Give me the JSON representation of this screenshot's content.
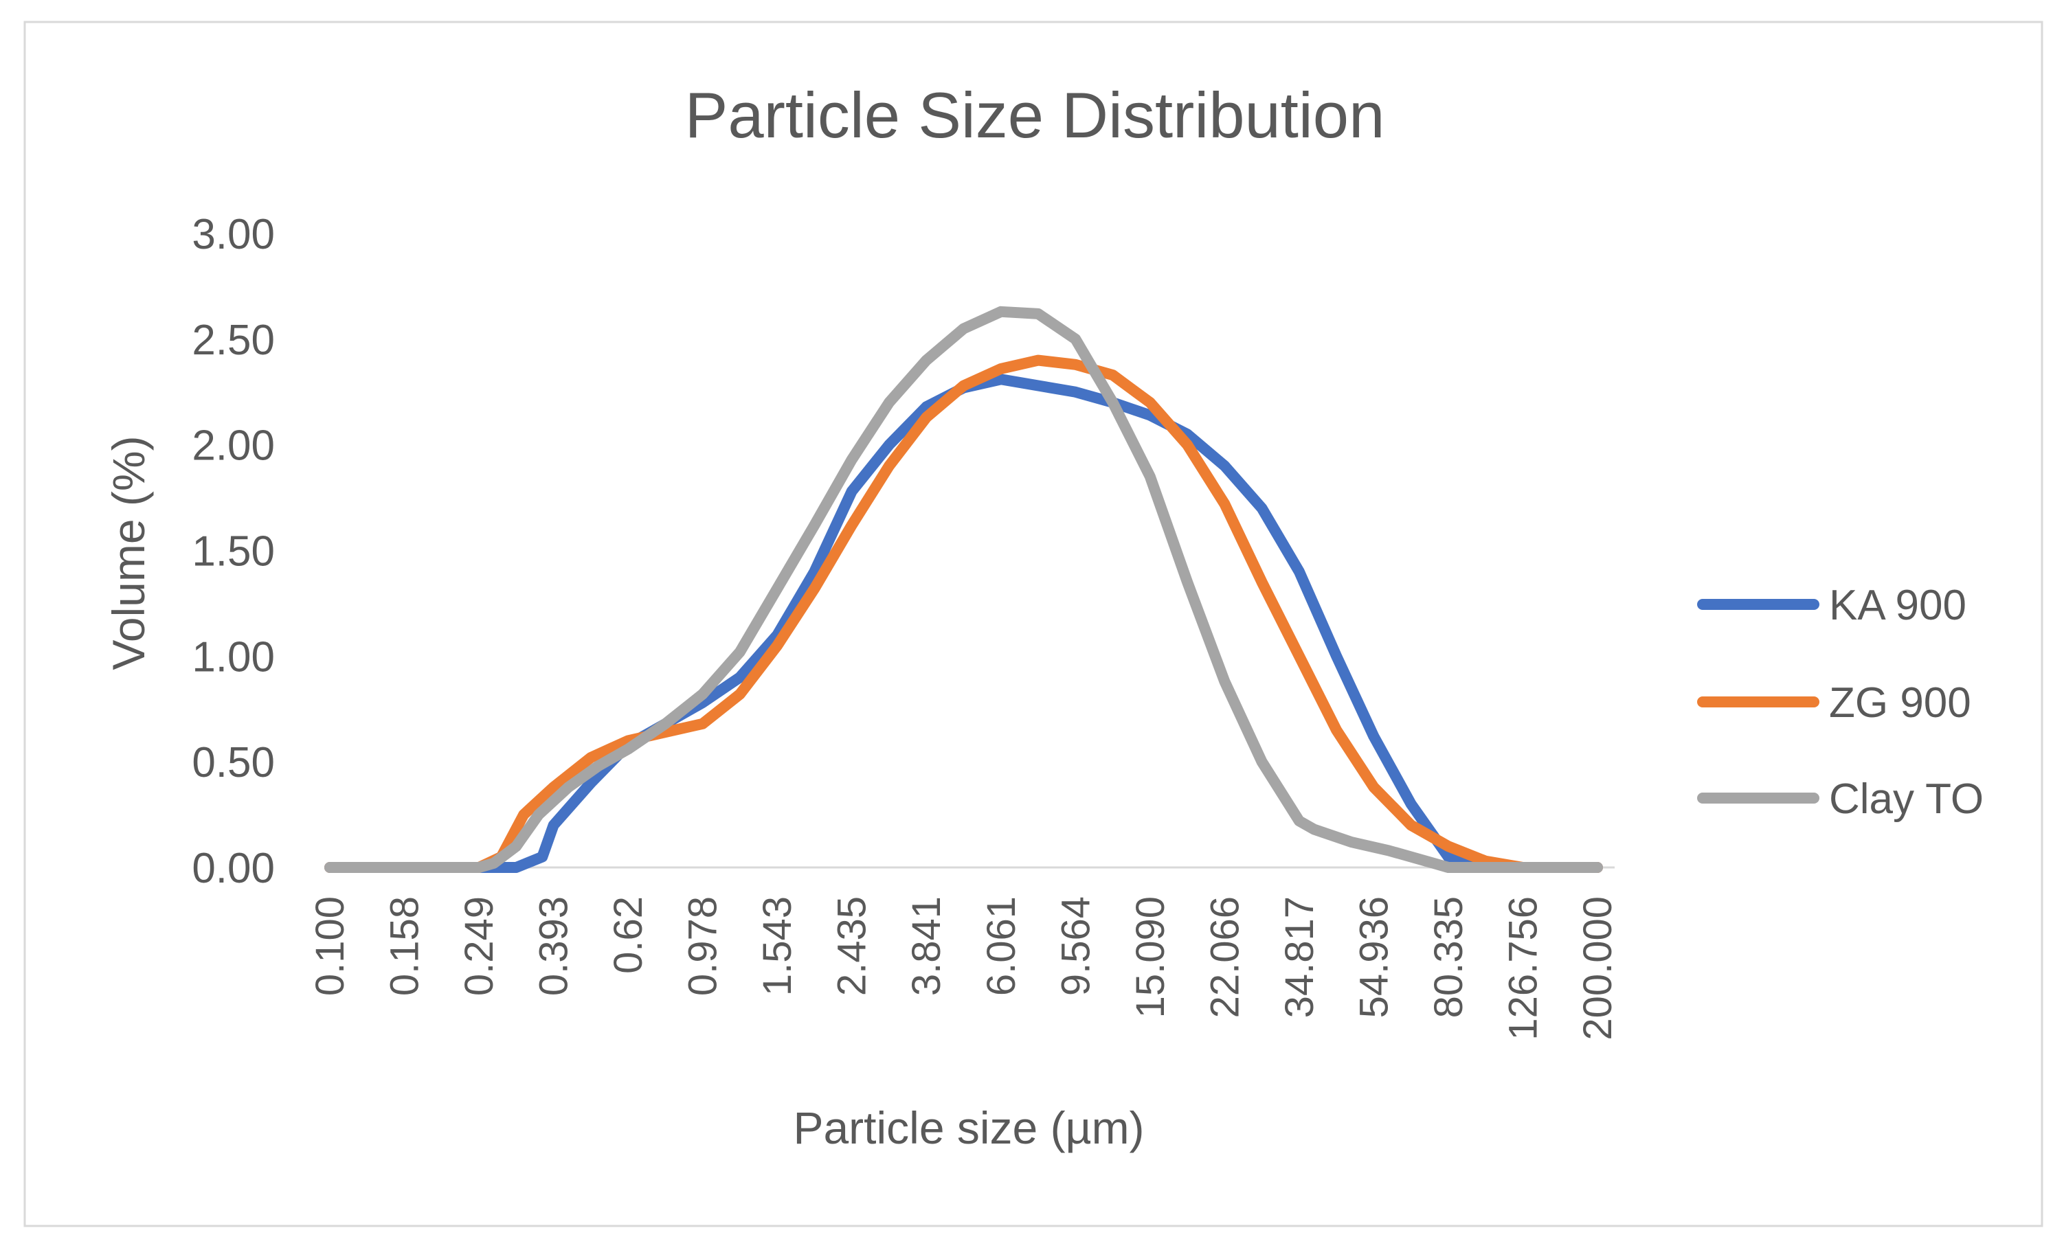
{
  "chart_data": {
    "type": "line",
    "title": "Particle Size Distribution",
    "xlabel": "Particle size (µm)",
    "ylabel": "Volume (%)",
    "x_scale": "log",
    "ylim": [
      0,
      3.0
    ],
    "y_ticks": [
      "0.00",
      "0.50",
      "1.00",
      "1.50",
      "2.00",
      "2.50",
      "3.00"
    ],
    "categories": [
      "0.100",
      "0.158",
      "0.249",
      "0.393",
      "0.62",
      "0.978",
      "1.543",
      "2.435",
      "3.841",
      "6.061",
      "9.564",
      "15.090",
      "22.066",
      "34.817",
      "54.936",
      "80.335",
      "126.756",
      "200.000"
    ],
    "grid": false,
    "legend_position": "right",
    "series": [
      {
        "name": "KA 900",
        "color": "#4472c4",
        "points": [
          [
            0,
            0
          ],
          [
            2,
            0
          ],
          [
            2.5,
            0
          ],
          [
            2.85,
            0.05
          ],
          [
            3,
            0.2
          ],
          [
            3.5,
            0.4
          ],
          [
            4,
            0.58
          ],
          [
            4.5,
            0.68
          ],
          [
            5,
            0.78
          ],
          [
            5.5,
            0.9
          ],
          [
            6,
            1.1
          ],
          [
            6.5,
            1.4
          ],
          [
            7,
            1.78
          ],
          [
            7.5,
            2.0
          ],
          [
            8,
            2.18
          ],
          [
            8.5,
            2.27
          ],
          [
            9,
            2.31
          ],
          [
            9.5,
            2.28
          ],
          [
            10,
            2.25
          ],
          [
            10.5,
            2.2
          ],
          [
            11,
            2.14
          ],
          [
            11.5,
            2.05
          ],
          [
            12,
            1.9
          ],
          [
            12.5,
            1.7
          ],
          [
            13,
            1.4
          ],
          [
            13.5,
            1.0
          ],
          [
            14,
            0.62
          ],
          [
            14.5,
            0.3
          ],
          [
            15,
            0.05
          ],
          [
            15.5,
            0
          ],
          [
            17,
            0
          ]
        ]
      },
      {
        "name": "ZG 900",
        "color": "#ed7d31",
        "points": [
          [
            0,
            0
          ],
          [
            2,
            0
          ],
          [
            2.3,
            0.05
          ],
          [
            2.6,
            0.25
          ],
          [
            3,
            0.38
          ],
          [
            3.5,
            0.52
          ],
          [
            4,
            0.6
          ],
          [
            4.5,
            0.64
          ],
          [
            5,
            0.68
          ],
          [
            5.5,
            0.82
          ],
          [
            6,
            1.05
          ],
          [
            6.5,
            1.32
          ],
          [
            7,
            1.62
          ],
          [
            7.5,
            1.9
          ],
          [
            8,
            2.13
          ],
          [
            8.5,
            2.28
          ],
          [
            9,
            2.36
          ],
          [
            9.5,
            2.4
          ],
          [
            10,
            2.38
          ],
          [
            10.5,
            2.33
          ],
          [
            11,
            2.2
          ],
          [
            11.5,
            2.0
          ],
          [
            12,
            1.72
          ],
          [
            12.5,
            1.35
          ],
          [
            13,
            1.0
          ],
          [
            13.5,
            0.65
          ],
          [
            14,
            0.38
          ],
          [
            14.5,
            0.2
          ],
          [
            15,
            0.1
          ],
          [
            15.5,
            0.03
          ],
          [
            16,
            0
          ],
          [
            17,
            0
          ]
        ]
      },
      {
        "name": "Clay TO",
        "color": "#a5a5a5",
        "points": [
          [
            0,
            0
          ],
          [
            2,
            0
          ],
          [
            2.2,
            0.02
          ],
          [
            2.5,
            0.1
          ],
          [
            2.8,
            0.25
          ],
          [
            3.2,
            0.38
          ],
          [
            3.6,
            0.48
          ],
          [
            4,
            0.56
          ],
          [
            4.5,
            0.68
          ],
          [
            5,
            0.82
          ],
          [
            5.5,
            1.02
          ],
          [
            6,
            1.32
          ],
          [
            6.5,
            1.62
          ],
          [
            7,
            1.93
          ],
          [
            7.5,
            2.2
          ],
          [
            8,
            2.4
          ],
          [
            8.5,
            2.55
          ],
          [
            9,
            2.63
          ],
          [
            9.5,
            2.62
          ],
          [
            10,
            2.5
          ],
          [
            10.5,
            2.2
          ],
          [
            11,
            1.85
          ],
          [
            11.5,
            1.35
          ],
          [
            12,
            0.88
          ],
          [
            12.5,
            0.5
          ],
          [
            13,
            0.22
          ],
          [
            13.2,
            0.18
          ],
          [
            13.7,
            0.12
          ],
          [
            14.2,
            0.08
          ],
          [
            14.8,
            0.02
          ],
          [
            15,
            0
          ],
          [
            17,
            0
          ]
        ]
      }
    ]
  }
}
